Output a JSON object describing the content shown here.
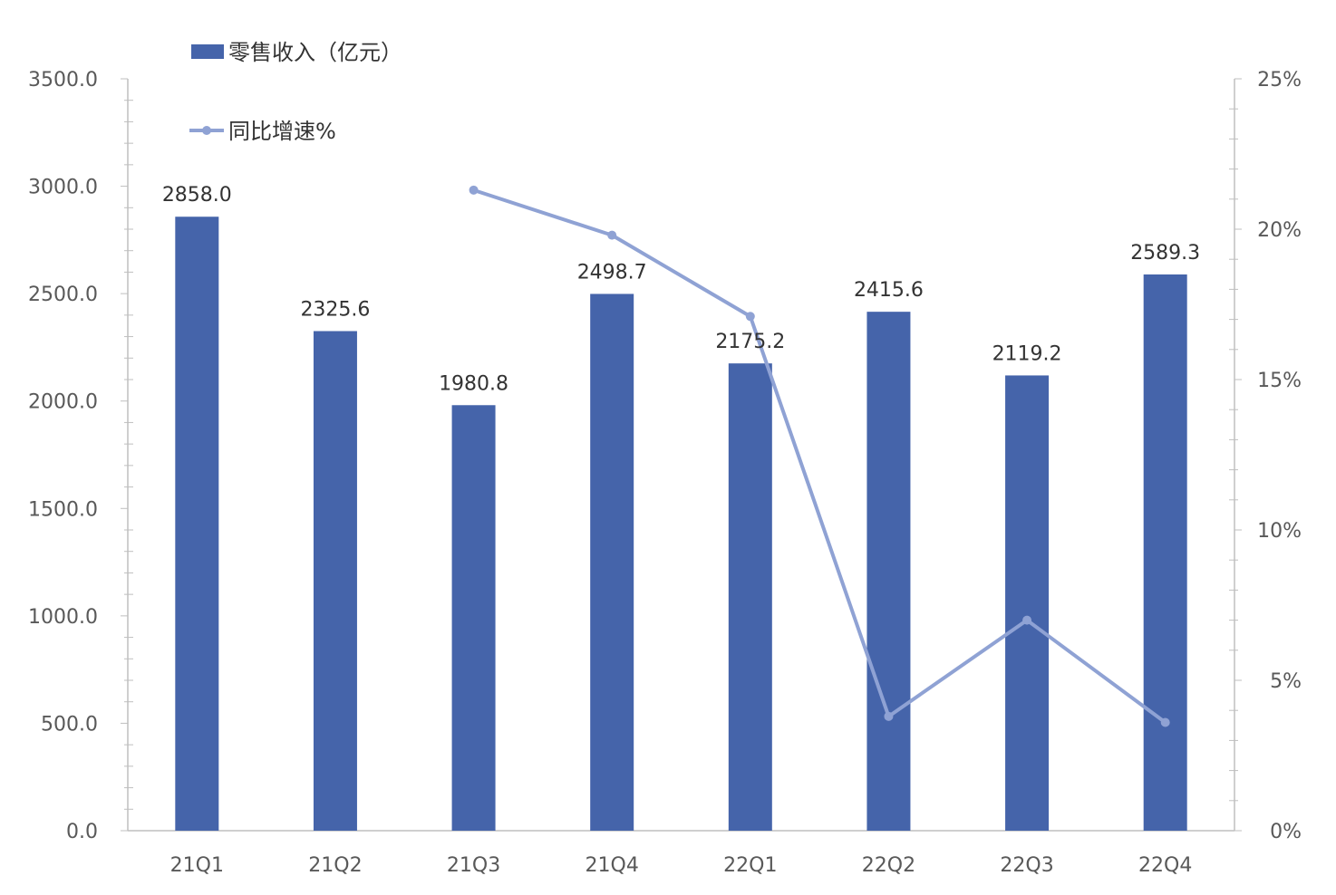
{
  "chart_data": {
    "type": "bar",
    "categories": [
      "21Q1",
      "21Q2",
      "21Q3",
      "21Q4",
      "22Q1",
      "22Q2",
      "22Q3",
      "22Q4"
    ],
    "series": [
      {
        "name": "零售收入（亿元）",
        "type": "bar",
        "axis": "left",
        "values": [
          2858.0,
          2325.6,
          1980.8,
          2498.7,
          2175.2,
          2415.6,
          2119.2,
          2589.3
        ],
        "labels": [
          "2858.0",
          "2325.6",
          "1980.8",
          "2498.7",
          "2175.2",
          "2415.6",
          "2119.2",
          "2589.3"
        ],
        "color": "#4564AA"
      },
      {
        "name": "同比增速%",
        "type": "line",
        "axis": "right",
        "values": [
          null,
          null,
          21.3,
          19.8,
          17.1,
          3.8,
          7.0,
          3.6
        ],
        "color": "#8FA2D4"
      }
    ],
    "y_left": {
      "range": [
        0,
        3500
      ],
      "ticks": [
        0,
        500,
        1000,
        1500,
        2000,
        2500,
        3000,
        3500
      ],
      "tick_labels": [
        "0.0",
        "500.0",
        "1000.0",
        "1500.0",
        "2000.0",
        "2500.0",
        "3000.0",
        "3500.0"
      ]
    },
    "y_right": {
      "range": [
        0,
        25
      ],
      "ticks": [
        0,
        5,
        10,
        15,
        20,
        25
      ],
      "tick_labels": [
        "0%",
        "5%",
        "10%",
        "15%",
        "20%",
        "25%"
      ]
    },
    "grid": false,
    "legend_position": "top-left"
  }
}
